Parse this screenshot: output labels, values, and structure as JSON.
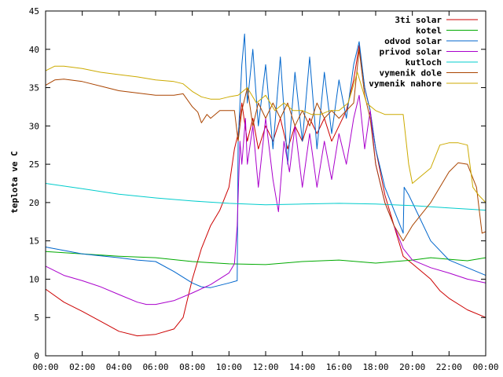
{
  "chart_data": {
    "type": "line",
    "title": "",
    "xlabel": "",
    "ylabel": "teplota ve C",
    "xlim": [
      0,
      24
    ],
    "ylim": [
      0,
      45
    ],
    "x_ticks": [
      "00:00",
      "02:00",
      "04:00",
      "06:00",
      "08:00",
      "10:00",
      "12:00",
      "14:00",
      "16:00",
      "18:00",
      "20:00",
      "22:00",
      "00:00"
    ],
    "y_ticks": [
      "0",
      "5",
      "10",
      "15",
      "20",
      "25",
      "30",
      "35",
      "40",
      "45"
    ],
    "grid": false,
    "legend_position": "top-right",
    "series": [
      {
        "name": "3ti solar",
        "color": "#cc0000",
        "points": [
          [
            0,
            8.7
          ],
          [
            1,
            7
          ],
          [
            2,
            5.8
          ],
          [
            3,
            4.5
          ],
          [
            4,
            3.2
          ],
          [
            5,
            2.6
          ],
          [
            6,
            2.8
          ],
          [
            7,
            3.5
          ],
          [
            7.5,
            5
          ],
          [
            8,
            10
          ],
          [
            8.5,
            14
          ],
          [
            9,
            17
          ],
          [
            9.5,
            19
          ],
          [
            10,
            22
          ],
          [
            10.3,
            27
          ],
          [
            10.5,
            29
          ],
          [
            10.7,
            33
          ],
          [
            11,
            28
          ],
          [
            11.3,
            31
          ],
          [
            11.6,
            27
          ],
          [
            12,
            30
          ],
          [
            12.4,
            28
          ],
          [
            12.8,
            31
          ],
          [
            13.2,
            27
          ],
          [
            13.6,
            30
          ],
          [
            14,
            28
          ],
          [
            14.4,
            31
          ],
          [
            14.8,
            29
          ],
          [
            15.2,
            31
          ],
          [
            15.6,
            28
          ],
          [
            16,
            30
          ],
          [
            16.4,
            32
          ],
          [
            16.8,
            36
          ],
          [
            17.1,
            40.5
          ],
          [
            17.4,
            35
          ],
          [
            17.7,
            32
          ],
          [
            18,
            27
          ],
          [
            18.5,
            21
          ],
          [
            19,
            17
          ],
          [
            19.5,
            13
          ],
          [
            20,
            12
          ],
          [
            21,
            10
          ],
          [
            21.5,
            8.5
          ],
          [
            22,
            7.5
          ],
          [
            23,
            6
          ],
          [
            24,
            5
          ]
        ]
      },
      {
        "name": "kotel",
        "color": "#00aa00",
        "points": [
          [
            0,
            13.6
          ],
          [
            2,
            13.3
          ],
          [
            4,
            13
          ],
          [
            6,
            12.8
          ],
          [
            8,
            12.3
          ],
          [
            10,
            12
          ],
          [
            12,
            11.9
          ],
          [
            14,
            12.3
          ],
          [
            16,
            12.5
          ],
          [
            18,
            12.1
          ],
          [
            20,
            12.5
          ],
          [
            21,
            12.8
          ],
          [
            22,
            12.6
          ],
          [
            23,
            12.4
          ],
          [
            24,
            12.8
          ]
        ]
      },
      {
        "name": "odvod solar",
        "color": "#0066cc",
        "points": [
          [
            0,
            14.2
          ],
          [
            2,
            13.3
          ],
          [
            4,
            12.8
          ],
          [
            5,
            12.5
          ],
          [
            6,
            12.3
          ],
          [
            7,
            11
          ],
          [
            8,
            9.5
          ],
          [
            8.5,
            9
          ],
          [
            9,
            8.9
          ],
          [
            10,
            9.5
          ],
          [
            10.45,
            9.8
          ],
          [
            10.5,
            28
          ],
          [
            10.7,
            38
          ],
          [
            10.85,
            42
          ],
          [
            11,
            33
          ],
          [
            11.3,
            40
          ],
          [
            11.6,
            30
          ],
          [
            12,
            38
          ],
          [
            12.4,
            27
          ],
          [
            12.8,
            39
          ],
          [
            13.2,
            25
          ],
          [
            13.6,
            37
          ],
          [
            14,
            28
          ],
          [
            14.4,
            39
          ],
          [
            14.8,
            27
          ],
          [
            15.2,
            37
          ],
          [
            15.6,
            29
          ],
          [
            16,
            36
          ],
          [
            16.4,
            31
          ],
          [
            16.8,
            38
          ],
          [
            17.1,
            41
          ],
          [
            17.4,
            35
          ],
          [
            17.7,
            32
          ],
          [
            18,
            27
          ],
          [
            18.5,
            22
          ],
          [
            19,
            19
          ],
          [
            19.5,
            16
          ],
          [
            19.55,
            22
          ],
          [
            19.8,
            21
          ],
          [
            20,
            20
          ],
          [
            21,
            15
          ],
          [
            22,
            12.5
          ],
          [
            23,
            11.5
          ],
          [
            24,
            10.5
          ]
        ]
      },
      {
        "name": "privod solar",
        "color": "#aa00cc",
        "points": [
          [
            0,
            11.7
          ],
          [
            1,
            10.5
          ],
          [
            2,
            9.8
          ],
          [
            3,
            9
          ],
          [
            4,
            8
          ],
          [
            5,
            7
          ],
          [
            5.5,
            6.7
          ],
          [
            6,
            6.7
          ],
          [
            7,
            7.2
          ],
          [
            8,
            8.2
          ],
          [
            9,
            9.3
          ],
          [
            10,
            10.8
          ],
          [
            10.3,
            12
          ],
          [
            10.45,
            17
          ],
          [
            10.6,
            28
          ],
          [
            10.7,
            25
          ],
          [
            10.9,
            31
          ],
          [
            11,
            25
          ],
          [
            11.3,
            30
          ],
          [
            11.6,
            22
          ],
          [
            12,
            31
          ],
          [
            12.4,
            23
          ],
          [
            12.7,
            18.8
          ],
          [
            13,
            28
          ],
          [
            13.3,
            24
          ],
          [
            13.6,
            30
          ],
          [
            14,
            22
          ],
          [
            14.4,
            29
          ],
          [
            14.8,
            22
          ],
          [
            15.2,
            28
          ],
          [
            15.6,
            23
          ],
          [
            16,
            29
          ],
          [
            16.4,
            25
          ],
          [
            16.8,
            31
          ],
          [
            17.1,
            34
          ],
          [
            17.4,
            27
          ],
          [
            17.7,
            32
          ],
          [
            18,
            25
          ],
          [
            18.5,
            20
          ],
          [
            19,
            17
          ],
          [
            19.5,
            14
          ],
          [
            20,
            12.5
          ],
          [
            21,
            11.5
          ],
          [
            22,
            10.8
          ],
          [
            23,
            10
          ],
          [
            24,
            9.5
          ]
        ]
      },
      {
        "name": "kutloch",
        "color": "#00cccc",
        "points": [
          [
            0,
            22.5
          ],
          [
            2,
            21.8
          ],
          [
            4,
            21.1
          ],
          [
            6,
            20.6
          ],
          [
            8,
            20.2
          ],
          [
            10,
            19.9
          ],
          [
            12,
            19.7
          ],
          [
            14,
            19.8
          ],
          [
            16,
            19.9
          ],
          [
            18,
            19.8
          ],
          [
            20,
            19.6
          ],
          [
            22,
            19.3
          ],
          [
            24,
            19
          ]
        ]
      },
      {
        "name": "vymenik dole",
        "color": "#aa4400",
        "points": [
          [
            0,
            35.3
          ],
          [
            0.5,
            36
          ],
          [
            1,
            36.1
          ],
          [
            2,
            35.8
          ],
          [
            3,
            35.2
          ],
          [
            4,
            34.6
          ],
          [
            5,
            34.3
          ],
          [
            6,
            34
          ],
          [
            7,
            34
          ],
          [
            7.5,
            34.2
          ],
          [
            8,
            32.5
          ],
          [
            8.3,
            31.8
          ],
          [
            8.5,
            30.4
          ],
          [
            8.8,
            31.5
          ],
          [
            9,
            31
          ],
          [
            9.5,
            32
          ],
          [
            10,
            32
          ],
          [
            10.3,
            32
          ],
          [
            10.5,
            28
          ],
          [
            10.7,
            32
          ],
          [
            11,
            35
          ],
          [
            11.3,
            30
          ],
          [
            11.6,
            33
          ],
          [
            12,
            31
          ],
          [
            12.4,
            33
          ],
          [
            12.8,
            31
          ],
          [
            13.2,
            33
          ],
          [
            13.6,
            30
          ],
          [
            14,
            32
          ],
          [
            14.4,
            30
          ],
          [
            14.8,
            33
          ],
          [
            15.2,
            31
          ],
          [
            15.6,
            32
          ],
          [
            16,
            31
          ],
          [
            16.4,
            32
          ],
          [
            16.8,
            33
          ],
          [
            17.1,
            40
          ],
          [
            17.4,
            34
          ],
          [
            17.7,
            31
          ],
          [
            18,
            25
          ],
          [
            18.5,
            20
          ],
          [
            19,
            17
          ],
          [
            19.5,
            15
          ],
          [
            20,
            17
          ],
          [
            21,
            20
          ],
          [
            22,
            24
          ],
          [
            22.5,
            25.2
          ],
          [
            23,
            25
          ],
          [
            23.5,
            22
          ],
          [
            23.8,
            16
          ],
          [
            24,
            16.2
          ]
        ]
      },
      {
        "name": "vymenik nahore",
        "color": "#ccaa00",
        "points": [
          [
            0,
            37.2
          ],
          [
            0.5,
            37.8
          ],
          [
            1,
            37.8
          ],
          [
            2,
            37.5
          ],
          [
            3,
            37
          ],
          [
            4,
            36.7
          ],
          [
            5,
            36.4
          ],
          [
            6,
            36
          ],
          [
            7,
            35.8
          ],
          [
            7.5,
            35.5
          ],
          [
            8,
            34.5
          ],
          [
            8.5,
            33.8
          ],
          [
            9,
            33.5
          ],
          [
            9.5,
            33.5
          ],
          [
            10,
            33.8
          ],
          [
            10.5,
            34
          ],
          [
            11,
            35
          ],
          [
            11.5,
            33
          ],
          [
            12,
            34
          ],
          [
            12.5,
            32
          ],
          [
            13,
            33
          ],
          [
            13.5,
            32
          ],
          [
            14,
            32
          ],
          [
            14.5,
            31.5
          ],
          [
            15,
            31.5
          ],
          [
            15.5,
            32
          ],
          [
            16,
            32
          ],
          [
            16.5,
            33
          ],
          [
            17,
            37
          ],
          [
            17.5,
            33
          ],
          [
            18,
            32
          ],
          [
            18.5,
            31.5
          ],
          [
            19,
            31.5
          ],
          [
            19.5,
            31.5
          ],
          [
            19.8,
            25
          ],
          [
            20,
            22.5
          ],
          [
            20.5,
            23.5
          ],
          [
            21,
            24.5
          ],
          [
            21.5,
            27.5
          ],
          [
            22,
            27.8
          ],
          [
            22.5,
            27.8
          ],
          [
            23,
            27.5
          ],
          [
            23.3,
            22
          ],
          [
            23.6,
            21
          ],
          [
            24,
            20
          ]
        ]
      }
    ]
  }
}
